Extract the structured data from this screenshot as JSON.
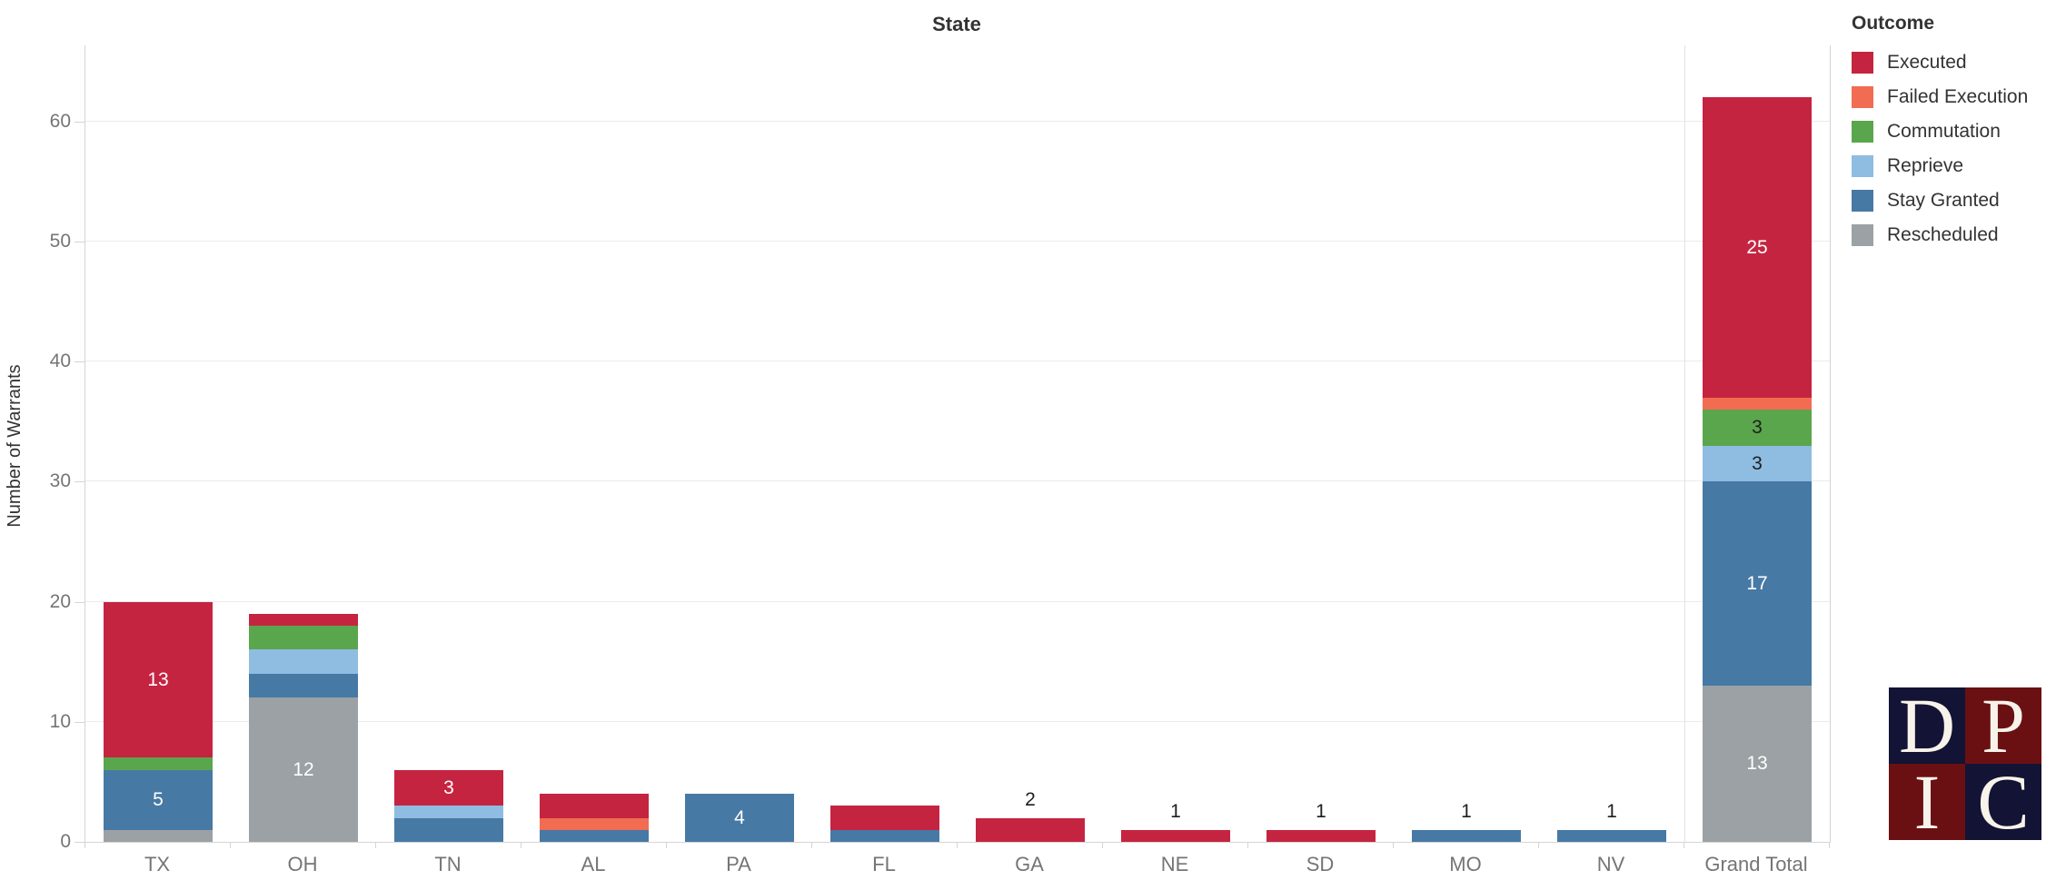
{
  "title": "State",
  "y_axis": {
    "title": "Number of Warrants",
    "tick_values": [
      0,
      10,
      20,
      30,
      40,
      50,
      60
    ]
  },
  "legend": {
    "title": "Outcome",
    "items": [
      {
        "label": "Executed",
        "color": "#c52441"
      },
      {
        "label": "Failed Execution",
        "color": "#f26c52"
      },
      {
        "label": "Commutation",
        "color": "#5aa64c"
      },
      {
        "label": "Reprieve",
        "color": "#8fbce1"
      },
      {
        "label": "Stay Granted",
        "color": "#4779a5"
      },
      {
        "label": "Rescheduled",
        "color": "#9ba1a4"
      }
    ]
  },
  "chart_data": {
    "type": "bar",
    "stacked": true,
    "title": "State",
    "xlabel": "State",
    "ylabel": "Number of Warrants",
    "ylim": [
      0,
      66
    ],
    "grid": true,
    "legend_position": "right",
    "legend_title": "Outcome",
    "categories": [
      "TX",
      "OH",
      "TN",
      "AL",
      "PA",
      "FL",
      "GA",
      "NE",
      "SD",
      "MO",
      "NV",
      "Grand Total"
    ],
    "series": [
      {
        "name": "Rescheduled",
        "color": "#9ba1a4",
        "label_color": "#ffffff",
        "values": [
          1,
          12,
          0,
          0,
          0,
          0,
          0,
          0,
          0,
          0,
          0,
          13
        ]
      },
      {
        "name": "Stay Granted",
        "color": "#4779a5",
        "label_color": "#ffffff",
        "values": [
          5,
          2,
          2,
          1,
          4,
          1,
          0,
          0,
          0,
          1,
          1,
          17
        ]
      },
      {
        "name": "Reprieve",
        "color": "#8fbce1",
        "label_color": "#1e1e1e",
        "values": [
          0,
          2,
          1,
          0,
          0,
          0,
          0,
          0,
          0,
          0,
          0,
          3
        ]
      },
      {
        "name": "Commutation",
        "color": "#5aa64c",
        "label_color": "#1e1e1e",
        "values": [
          1,
          2,
          0,
          0,
          0,
          0,
          0,
          0,
          0,
          0,
          0,
          3
        ]
      },
      {
        "name": "Failed Execution",
        "color": "#f26c52",
        "label_color": "#ffffff",
        "values": [
          0,
          0,
          0,
          1,
          0,
          0,
          0,
          0,
          0,
          0,
          0,
          1
        ]
      },
      {
        "name": "Executed",
        "color": "#c52441",
        "label_color": "#ffffff",
        "values": [
          13,
          1,
          3,
          2,
          0,
          2,
          2,
          1,
          1,
          0,
          0,
          25
        ]
      }
    ],
    "stack_totals": [
      20,
      19,
      6,
      4,
      4,
      3,
      2,
      1,
      1,
      1,
      1,
      62
    ],
    "labels_above_bars": [
      "",
      "",
      "",
      "",
      "",
      "",
      "2",
      "1",
      "1",
      "1",
      "1",
      ""
    ],
    "visible_segment_labels": {
      "TX": {
        "Executed": "13",
        "Stay Granted": "5"
      },
      "OH": {
        "Rescheduled": "12"
      },
      "TN": {
        "Executed": "3"
      },
      "PA": {
        "Stay Granted": "4"
      },
      "Grand Total": {
        "Executed": "25",
        "Commutation": "3",
        "Reprieve": "3",
        "Stay Granted": "17",
        "Rescheduled": "13"
      }
    }
  },
  "logo": {
    "name": "DPIC",
    "squares": [
      {
        "letter": "D",
        "bg": "#131335"
      },
      {
        "letter": "P",
        "bg": "#6a1013"
      },
      {
        "letter": "I",
        "bg": "#6a1013"
      },
      {
        "letter": "C",
        "bg": "#131335"
      }
    ]
  }
}
